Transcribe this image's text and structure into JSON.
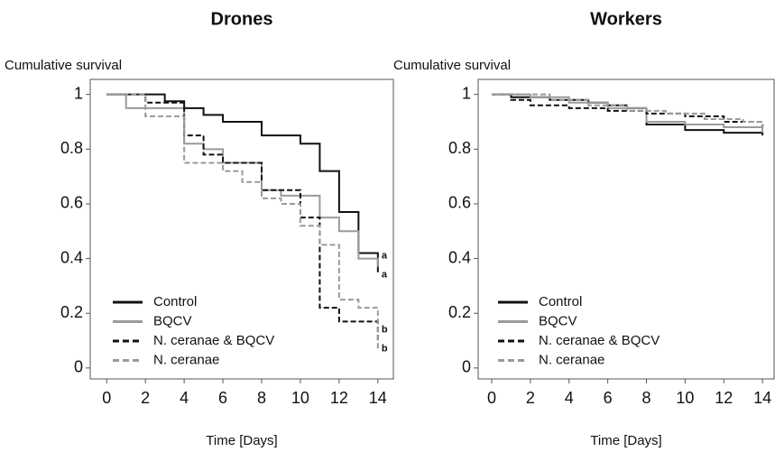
{
  "chart_data": [
    {
      "type": "step",
      "title": "Drones",
      "y_label": "Cumulative survival",
      "x_label": "Time [Days]",
      "xlim": [
        -0.85,
        14.8
      ],
      "ylim": [
        -0.04,
        1.055
      ],
      "xticks": [
        0,
        2,
        4,
        6,
        8,
        10,
        12,
        14
      ],
      "yticks": [
        0,
        0.2,
        0.4,
        0.6,
        0.8,
        1
      ],
      "legend": "lower left",
      "series": [
        {
          "name": "Control",
          "color": "#111111",
          "dashed": false,
          "x": [
            0,
            3,
            4,
            5,
            6,
            8,
            10,
            11,
            12,
            13,
            14
          ],
          "values": [
            1,
            0.975,
            0.95,
            0.925,
            0.9,
            0.85,
            0.82,
            0.72,
            0.57,
            0.42,
            0.35
          ]
        },
        {
          "name": "BQCV",
          "color": "#9a9a9a",
          "dashed": false,
          "x": [
            0,
            1,
            4,
            5,
            6,
            8,
            9,
            11,
            12,
            13,
            14
          ],
          "values": [
            1,
            0.95,
            0.82,
            0.8,
            0.75,
            0.65,
            0.63,
            0.55,
            0.5,
            0.4,
            0.37
          ]
        },
        {
          "name": "N. ceranae & BQCV",
          "color": "#111111",
          "dashed": true,
          "x": [
            0,
            2,
            4,
            5,
            6,
            8,
            10,
            11,
            12,
            14
          ],
          "values": [
            1,
            0.97,
            0.85,
            0.78,
            0.75,
            0.65,
            0.55,
            0.22,
            0.17,
            0.1
          ]
        },
        {
          "name": "N. ceranae",
          "color": "#9a9a9a",
          "dashed": true,
          "x": [
            0,
            2,
            4,
            6,
            7,
            8,
            9,
            10,
            11,
            12,
            13,
            14
          ],
          "values": [
            1,
            0.92,
            0.75,
            0.72,
            0.68,
            0.62,
            0.6,
            0.52,
            0.45,
            0.25,
            0.22,
            0.07
          ]
        }
      ],
      "annotations": [
        {
          "text": "a",
          "x": 14,
          "y": 0.41
        },
        {
          "text": "a",
          "x": 14,
          "y": 0.34
        },
        {
          "text": "b",
          "x": 14,
          "y": 0.14
        },
        {
          "text": "b",
          "x": 14,
          "y": 0.07
        }
      ]
    },
    {
      "type": "step",
      "title": "Workers",
      "y_label": "Cumulative survival",
      "x_label": "Time [Days]",
      "xlim": [
        -0.7,
        14.6
      ],
      "ylim": [
        -0.04,
        1.055
      ],
      "xticks": [
        0,
        2,
        4,
        6,
        8,
        10,
        12,
        14
      ],
      "yticks": [
        0,
        0.2,
        0.4,
        0.6,
        0.8,
        1
      ],
      "legend": "lower left",
      "series": [
        {
          "name": "Control",
          "color": "#111111",
          "dashed": false,
          "x": [
            0,
            1,
            3,
            5,
            6,
            7,
            8,
            10,
            12,
            14
          ],
          "values": [
            1,
            0.99,
            0.98,
            0.97,
            0.96,
            0.95,
            0.89,
            0.87,
            0.86,
            0.85
          ]
        },
        {
          "name": "BQCV",
          "color": "#9a9a9a",
          "dashed": false,
          "x": [
            0,
            2,
            4,
            6,
            8,
            10,
            12,
            14
          ],
          "values": [
            1,
            0.99,
            0.97,
            0.95,
            0.9,
            0.89,
            0.88,
            0.86
          ]
        },
        {
          "name": "N. ceranae & BQCV",
          "color": "#111111",
          "dashed": true,
          "x": [
            0,
            1,
            2,
            4,
            6,
            8,
            10,
            12,
            14
          ],
          "values": [
            1,
            0.98,
            0.96,
            0.95,
            0.94,
            0.93,
            0.92,
            0.9,
            0.88
          ]
        },
        {
          "name": "N. ceranae",
          "color": "#9a9a9a",
          "dashed": true,
          "x": [
            0,
            3,
            5,
            7,
            9,
            11,
            13,
            14
          ],
          "values": [
            1,
            0.98,
            0.96,
            0.94,
            0.93,
            0.91,
            0.9,
            0.88
          ]
        }
      ]
    }
  ]
}
